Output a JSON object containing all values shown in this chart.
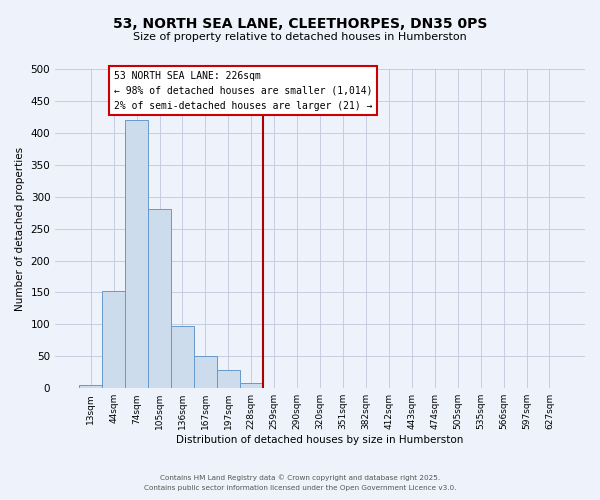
{
  "title": "53, NORTH SEA LANE, CLEETHORPES, DN35 0PS",
  "subtitle": "Size of property relative to detached houses in Humberston",
  "xlabel": "Distribution of detached houses by size in Humberston",
  "ylabel": "Number of detached properties",
  "bar_labels": [
    "13sqm",
    "44sqm",
    "74sqm",
    "105sqm",
    "136sqm",
    "167sqm",
    "197sqm",
    "228sqm",
    "259sqm",
    "290sqm",
    "320sqm",
    "351sqm",
    "382sqm",
    "412sqm",
    "443sqm",
    "474sqm",
    "505sqm",
    "535sqm",
    "566sqm",
    "597sqm",
    "627sqm"
  ],
  "bar_values": [
    5,
    152,
    420,
    281,
    97,
    50,
    28,
    8,
    0,
    0,
    0,
    0,
    0,
    0,
    0,
    0,
    0,
    0,
    0,
    0,
    0
  ],
  "bar_color": "#ccdcec",
  "bar_edge_color": "#6699cc",
  "vline_x": 7.5,
  "vline_color": "#aa0000",
  "annotation_title": "53 NORTH SEA LANE: 226sqm",
  "annotation_line1": "← 98% of detached houses are smaller (1,014)",
  "annotation_line2": "2% of semi-detached houses are larger (21) →",
  "annotation_box_color": "#ffffff",
  "annotation_box_edge_color": "#cc0000",
  "ylim": [
    0,
    500
  ],
  "yticks": [
    0,
    50,
    100,
    150,
    200,
    250,
    300,
    350,
    400,
    450,
    500
  ],
  "background_color": "#eef2fb",
  "plot_bg_color": "#eef2fb",
  "grid_color": "#c0c8dc",
  "footer1": "Contains HM Land Registry data © Crown copyright and database right 2025.",
  "footer2": "Contains public sector information licensed under the Open Government Licence v3.0."
}
